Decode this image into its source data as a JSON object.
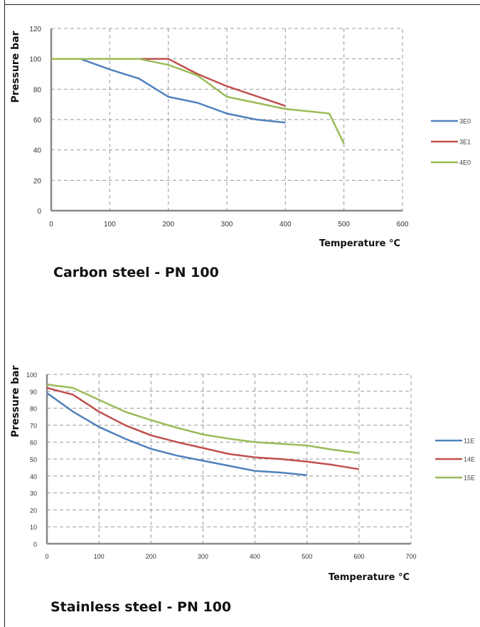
{
  "chart_data": [
    {
      "type": "line",
      "title": "",
      "caption": "Carbon steel - PN 100",
      "xlabel": "Temperature °C",
      "ylabel": "Pressure bar",
      "xlim": [
        0,
        600
      ],
      "ylim": [
        0,
        120
      ],
      "xticks": [
        "0",
        "100",
        "200",
        "300",
        "400",
        "500",
        "600"
      ],
      "yticks": [
        "0",
        "20",
        "40",
        "60",
        "80",
        "100",
        "120"
      ],
      "grid": true,
      "legend": "right",
      "series": [
        {
          "name": "3E0",
          "color": "#4f81bd",
          "x": [
            -50,
            50,
            100,
            150,
            200,
            250,
            300,
            350,
            400
          ],
          "y": [
            100,
            100,
            93,
            87,
            75,
            71,
            64,
            60,
            58
          ]
        },
        {
          "name": "3E1",
          "color": "#c0504d",
          "x": [
            -50,
            150,
            200,
            250,
            300,
            400
          ],
          "y": [
            100,
            100,
            100,
            90,
            82,
            69
          ]
        },
        {
          "name": "4E0",
          "color": "#9bbb59",
          "x": [
            -50,
            150,
            200,
            250,
            300,
            350,
            400,
            450,
            475,
            500
          ],
          "y": [
            100,
            100,
            96,
            89,
            75,
            71,
            67,
            65,
            64,
            44
          ]
        }
      ]
    },
    {
      "type": "line",
      "title": "",
      "caption": "Stainless steel - PN 100",
      "xlabel": "Temperature °C",
      "ylabel": "Pressure bar",
      "xlim": [
        0,
        700
      ],
      "ylim": [
        0,
        100
      ],
      "xticks": [
        "0",
        "100",
        "200",
        "300",
        "400",
        "500",
        "600",
        "700"
      ],
      "yticks": [
        "0",
        "10",
        "20",
        "30",
        "40",
        "50",
        "60",
        "70",
        "80",
        "90",
        "100"
      ],
      "grid": true,
      "legend": "right",
      "series": [
        {
          "name": "11E",
          "color": "#4f81bd",
          "x": [
            0,
            50,
            100,
            150,
            200,
            250,
            300,
            350,
            400,
            450,
            500
          ],
          "y": [
            89,
            78,
            69,
            62,
            56,
            52,
            49,
            46,
            43,
            42,
            40.5
          ]
        },
        {
          "name": "14E",
          "color": "#c0504d",
          "x": [
            0,
            50,
            100,
            150,
            200,
            250,
            300,
            350,
            400,
            450,
            500,
            550,
            600
          ],
          "y": [
            92,
            88,
            78,
            70,
            64,
            60,
            56.5,
            53,
            51,
            50,
            48.5,
            46.5,
            44
          ]
        },
        {
          "name": "15E",
          "color": "#9bbb59",
          "x": [
            0,
            50,
            100,
            150,
            200,
            250,
            300,
            350,
            400,
            450,
            500,
            550,
            600
          ],
          "y": [
            94,
            92,
            85,
            78,
            73,
            68.5,
            64.5,
            62,
            60,
            59,
            58,
            55.5,
            53.5
          ]
        }
      ]
    }
  ]
}
